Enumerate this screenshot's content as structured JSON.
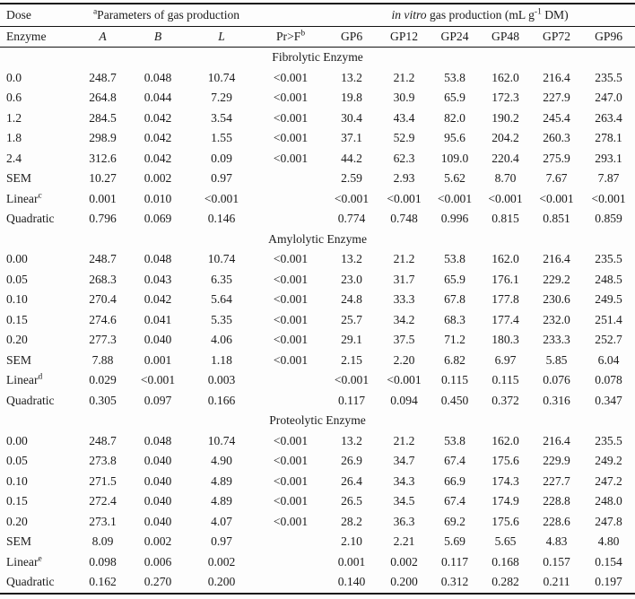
{
  "table": {
    "title_semantic": "enzyme-dose-gas-production-table",
    "colors": {
      "text": "#1b1b1b",
      "border": "#141414",
      "background": "#fdfdfd"
    },
    "header": {
      "group_row": [
        {
          "text": "Dose",
          "colspan": 1,
          "align": "left"
        },
        {
          "text": "^a^Parameters of gas production",
          "colspan": 3,
          "align": "center"
        },
        {
          "text": "",
          "colspan": 1,
          "align": "center"
        },
        {
          "text": "*in vitro* gas production (mL g^-1^ DM)",
          "colspan": 6,
          "align": "center"
        }
      ],
      "column_row": [
        "Enzyme",
        "*A*",
        "*B*",
        "*L*",
        "Pr>F^b^",
        "GP6",
        "GP12",
        "GP24",
        "GP48",
        "GP72",
        "GP96"
      ]
    },
    "sections": [
      {
        "title": "Fibrolytic Enzyme",
        "rows": [
          [
            "0.0",
            "248.7",
            "0.048",
            "10.74",
            "<0.001",
            "13.2",
            "21.2",
            "53.8",
            "162.0",
            "216.4",
            "235.5"
          ],
          [
            "0.6",
            "264.8",
            "0.044",
            "7.29",
            "<0.001",
            "19.8",
            "30.9",
            "65.9",
            "172.3",
            "227.9",
            "247.0"
          ],
          [
            "1.2",
            "284.5",
            "0.042",
            "3.54",
            "<0.001",
            "30.4",
            "43.4",
            "82.0",
            "190.2",
            "245.4",
            "263.4"
          ],
          [
            "1.8",
            "298.9",
            "0.042",
            "1.55",
            "<0.001",
            "37.1",
            "52.9",
            "95.6",
            "204.2",
            "260.3",
            "278.1"
          ],
          [
            "2.4",
            "312.6",
            "0.042",
            "0.09",
            "<0.001",
            "44.2",
            "62.3",
            "109.0",
            "220.4",
            "275.9",
            "293.1"
          ],
          [
            "SEM",
            "10.27",
            "0.002",
            "0.97",
            "",
            "2.59",
            "2.93",
            "5.62",
            "8.70",
            "7.67",
            "7.87"
          ],
          [
            "Linear^c^",
            "0.001",
            "0.010",
            "<0.001",
            "",
            "<0.001",
            "<0.001",
            "<0.001",
            "<0.001",
            "<0.001",
            "<0.001"
          ],
          [
            "Quadratic",
            "0.796",
            "0.069",
            "0.146",
            "",
            "0.774",
            "0.748",
            "0.996",
            "0.815",
            "0.851",
            "0.859"
          ]
        ]
      },
      {
        "title": "Amylolytic Enzyme",
        "rows": [
          [
            "0.00",
            "248.7",
            "0.048",
            "10.74",
            "<0.001",
            "13.2",
            "21.2",
            "53.8",
            "162.0",
            "216.4",
            "235.5"
          ],
          [
            "0.05",
            "268.3",
            "0.043",
            "6.35",
            "<0.001",
            "23.0",
            "31.7",
            "65.9",
            "176.1",
            "229.2",
            "248.5"
          ],
          [
            "0.10",
            "270.4",
            "0.042",
            "5.64",
            "<0.001",
            "24.8",
            "33.3",
            "67.8",
            "177.8",
            "230.6",
            "249.5"
          ],
          [
            "0.15",
            "274.6",
            "0.041",
            "5.35",
            "<0.001",
            "25.7",
            "34.2",
            "68.3",
            "177.4",
            "232.0",
            "251.4"
          ],
          [
            "0.20",
            "277.3",
            "0.040",
            "4.06",
            "<0.001",
            "29.1",
            "37.5",
            "71.2",
            "180.3",
            "233.3",
            "252.7"
          ],
          [
            "SEM",
            "7.88",
            "0.001",
            "1.18",
            "<0.001",
            "2.15",
            "2.20",
            "6.82",
            "6.97",
            "5.85",
            "6.04"
          ],
          [
            "Linear^d^",
            "0.029",
            "<0.001",
            "0.003",
            "",
            "<0.001",
            "<0.001",
            "0.115",
            "0.115",
            "0.076",
            "0.078"
          ],
          [
            "Quadratic",
            "0.305",
            "0.097",
            "0.166",
            "",
            "0.117",
            "0.094",
            "0.450",
            "0.372",
            "0.316",
            "0.347"
          ]
        ]
      },
      {
        "title": "Proteolytic Enzyme",
        "rows": [
          [
            "0.00",
            "248.7",
            "0.048",
            "10.74",
            "<0.001",
            "13.2",
            "21.2",
            "53.8",
            "162.0",
            "216.4",
            "235.5"
          ],
          [
            "0.05",
            "273.8",
            "0.040",
            "4.90",
            "<0.001",
            "26.9",
            "34.7",
            "67.4",
            "175.6",
            "229.9",
            "249.2"
          ],
          [
            "0.10",
            "271.5",
            "0.040",
            "4.89",
            "<0.001",
            "26.4",
            "34.3",
            "66.9",
            "174.3",
            "227.7",
            "247.2"
          ],
          [
            "0.15",
            "272.4",
            "0.040",
            "4.89",
            "<0.001",
            "26.5",
            "34.5",
            "67.4",
            "174.9",
            "228.8",
            "248.0"
          ],
          [
            "0.20",
            "273.1",
            "0.040",
            "4.07",
            "<0.001",
            "28.2",
            "36.3",
            "69.2",
            "175.6",
            "228.6",
            "247.8"
          ],
          [
            "SEM",
            "8.09",
            "0.002",
            "0.97",
            "",
            "2.10",
            "2.21",
            "5.69",
            "5.65",
            "4.83",
            "4.80"
          ],
          [
            "Linear^e^",
            "0.098",
            "0.006",
            "0.002",
            "",
            "0.001",
            "0.002",
            "0.117",
            "0.168",
            "0.157",
            "0.154"
          ],
          [
            "Quadratic",
            "0.162",
            "0.270",
            "0.200",
            "",
            "0.140",
            "0.200",
            "0.312",
            "0.282",
            "0.211",
            "0.197"
          ]
        ]
      }
    ]
  }
}
